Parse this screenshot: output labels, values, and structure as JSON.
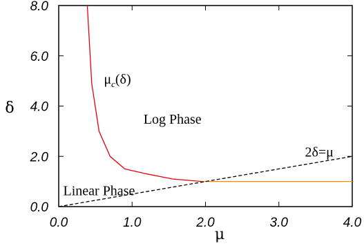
{
  "chart_data": {
    "type": "line",
    "title": "",
    "xlabel": "μ",
    "ylabel": "δ",
    "xlim": [
      0,
      4
    ],
    "ylim": [
      0,
      8
    ],
    "x_ticks": [
      0,
      1,
      2,
      3,
      4
    ],
    "y_ticks": [
      0,
      2,
      4,
      6,
      8
    ],
    "x_tick_labels": [
      "0.0",
      "1.0",
      "2.0",
      "3.0",
      "4.0"
    ],
    "y_tick_labels": [
      "0.0",
      "2.0",
      "4.0",
      "6.0",
      "8.0"
    ],
    "grid": false,
    "legend": "none",
    "series": [
      {
        "style": "solid",
        "color": "#e8000b",
        "x": [
          0.39,
          0.45,
          0.55,
          0.7,
          0.9,
          1.2,
          1.55,
          1.95
        ],
        "y": [
          8.0,
          4.9,
          3.0,
          2.0,
          1.5,
          1.3,
          1.1,
          1.0
        ]
      },
      {
        "style": "solid",
        "color": "#ff8c00",
        "x": [
          1.95,
          4.0
        ],
        "y": [
          1.0,
          1.0
        ]
      },
      {
        "style": "dashed",
        "color": "#000000",
        "x": [
          0.0,
          4.0
        ],
        "y": [
          0.0,
          2.0
        ]
      }
    ],
    "annotations": [
      {
        "text": "Log Phase",
        "x": 1.55,
        "y": 3.3
      },
      {
        "text": "2δ=μ",
        "x": 3.55,
        "y": 2.0
      },
      {
        "text": "Linear Phase",
        "x": 0.55,
        "y": 0.45
      },
      {
        "text": "μ",
        "sub": "c",
        "tail": "(δ)",
        "x": 0.8,
        "y": 4.9
      }
    ]
  }
}
